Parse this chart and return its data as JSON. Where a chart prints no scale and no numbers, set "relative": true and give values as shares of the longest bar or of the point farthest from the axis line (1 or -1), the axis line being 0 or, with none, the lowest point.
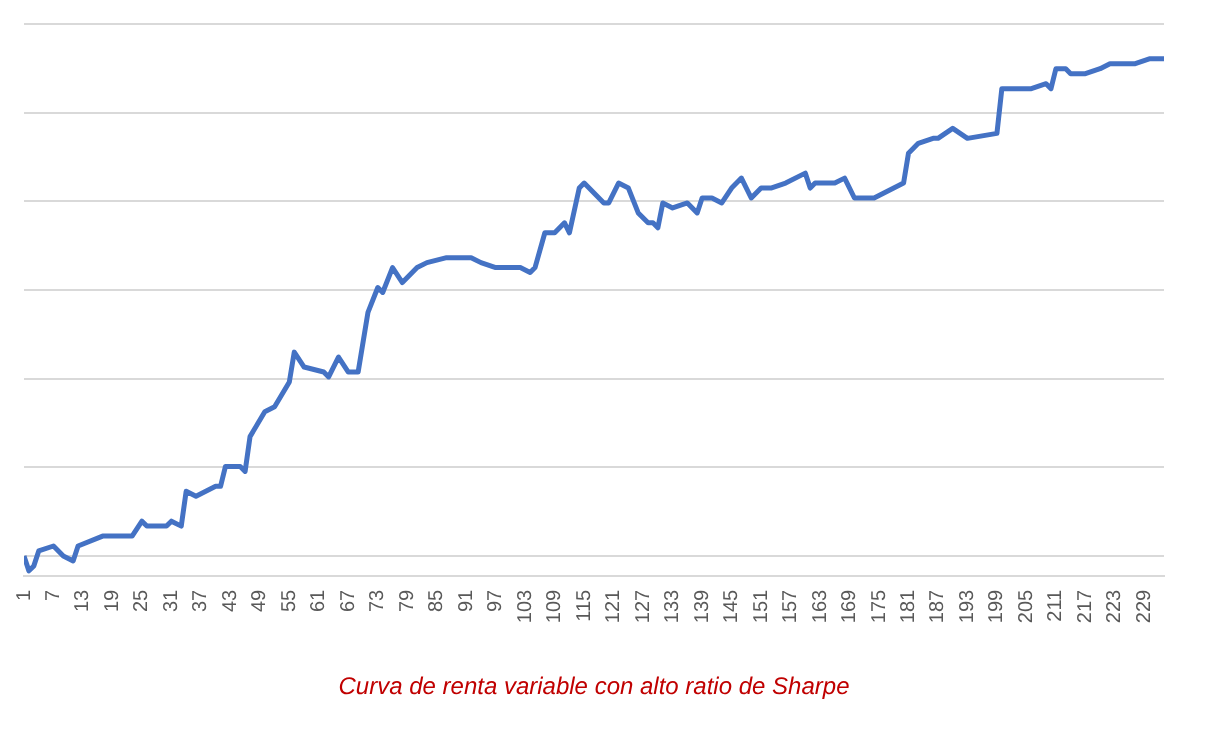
{
  "chart_data": {
    "type": "line",
    "title": "Curva de renta variable con alto ratio de Sharpe",
    "relative": true,
    "grid": "y",
    "legend": false,
    "marker": "none",
    "line_style": "solid",
    "xlim": [
      1,
      233
    ],
    "xticks": [
      1,
      7,
      13,
      19,
      25,
      31,
      37,
      43,
      49,
      55,
      61,
      67,
      73,
      79,
      85,
      91,
      97,
      103,
      109,
      115,
      121,
      127,
      133,
      139,
      145,
      151,
      157,
      163,
      169,
      175,
      181,
      187,
      193,
      199,
      205,
      211,
      217,
      223,
      229
    ],
    "series": [
      {
        "color": "#4472c4",
        "x": [
          1,
          2,
          3,
          4,
          7,
          9,
          11,
          12,
          17,
          23,
          25,
          26,
          30,
          31,
          33,
          34,
          36,
          40,
          41,
          42,
          45,
          46,
          47,
          50,
          52,
          55,
          56,
          58,
          62,
          63,
          65,
          67,
          69,
          71,
          73,
          74,
          76,
          78,
          81,
          83,
          87,
          89,
          92,
          94,
          97,
          100,
          102,
          104,
          105,
          107,
          109,
          111,
          112,
          114,
          115,
          117,
          119,
          120,
          122,
          124,
          126,
          128,
          129,
          130,
          131,
          133,
          136,
          137,
          138,
          139,
          141,
          143,
          145,
          147,
          149,
          151,
          153,
          156,
          160,
          161,
          162,
          165,
          166,
          168,
          170,
          172,
          174,
          176,
          178,
          180,
          181,
          183,
          186,
          187,
          190,
          193,
          199,
          200,
          203,
          206,
          209,
          210,
          211,
          213,
          214,
          217,
          220,
          222,
          224,
          227,
          230,
          233
        ],
        "values": [
          0,
          -0.03,
          -0.02,
          0.01,
          0.02,
          0,
          -0.01,
          0.02,
          0.04,
          0.04,
          0.07,
          0.06,
          0.06,
          0.07,
          0.06,
          0.13,
          0.12,
          0.14,
          0.14,
          0.18,
          0.18,
          0.17,
          0.24,
          0.29,
          0.3,
          0.35,
          0.41,
          0.38,
          0.37,
          0.36,
          0.4,
          0.37,
          0.37,
          0.49,
          0.54,
          0.53,
          0.58,
          0.55,
          0.58,
          0.59,
          0.6,
          0.6,
          0.6,
          0.59,
          0.58,
          0.58,
          0.58,
          0.57,
          0.58,
          0.65,
          0.65,
          0.67,
          0.65,
          0.74,
          0.75,
          0.73,
          0.71,
          0.71,
          0.75,
          0.74,
          0.69,
          0.67,
          0.67,
          0.66,
          0.71,
          0.7,
          0.71,
          0.7,
          0.69,
          0.72,
          0.72,
          0.71,
          0.74,
          0.76,
          0.72,
          0.74,
          0.74,
          0.75,
          0.77,
          0.74,
          0.75,
          0.75,
          0.75,
          0.76,
          0.72,
          0.72,
          0.72,
          0.73,
          0.74,
          0.75,
          0.81,
          0.83,
          0.84,
          0.84,
          0.86,
          0.84,
          0.85,
          0.94,
          0.94,
          0.94,
          0.95,
          0.94,
          0.98,
          0.98,
          0.97,
          0.97,
          0.98,
          0.99,
          0.99,
          0.99,
          1,
          1
        ]
      }
    ]
  }
}
